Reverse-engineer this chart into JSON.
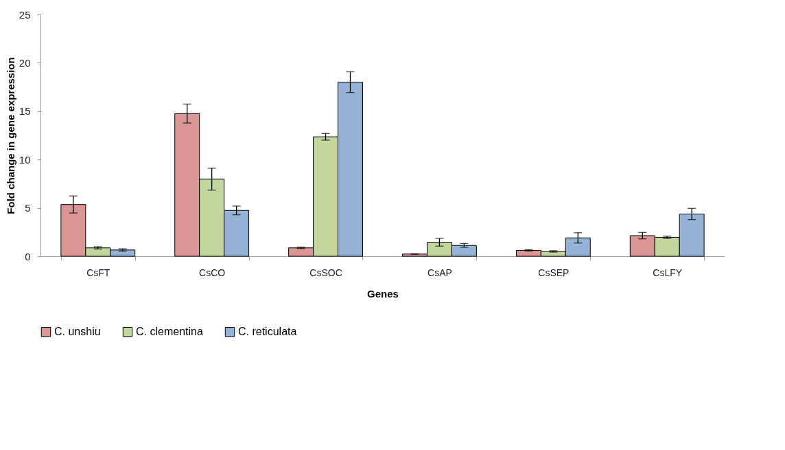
{
  "chart_data": {
    "type": "bar",
    "xlabel": "Genes",
    "ylabel": "Fold change in gene expression",
    "categories": [
      "CsFT",
      "CsCO",
      "CsSOC",
      "CsAP",
      "CsSEP",
      "CsLFY"
    ],
    "series": [
      {
        "name": "C. unshiu",
        "color": "#d99694",
        "values": [
          5.35,
          14.75,
          0.87,
          0.23,
          0.61,
          2.13
        ],
        "errors": [
          0.88,
          0.98,
          0.07,
          0.03,
          0.07,
          0.33
        ]
      },
      {
        "name": "C. clementina",
        "color": "#c3d69b",
        "values": [
          0.87,
          7.97,
          12.35,
          1.45,
          0.5,
          1.96
        ],
        "errors": [
          0.12,
          1.13,
          0.34,
          0.4,
          0.07,
          0.12
        ]
      },
      {
        "name": "C. reticulata",
        "color": "#95b3d7",
        "values": [
          0.65,
          4.74,
          18.0,
          1.12,
          1.9,
          4.37
        ],
        "errors": [
          0.12,
          0.45,
          1.07,
          0.2,
          0.53,
          0.58
        ]
      }
    ],
    "ylim": [
      0,
      25
    ],
    "yticks": [
      0,
      5,
      10,
      15,
      20,
      25
    ],
    "grid": false,
    "legend": "bottom"
  }
}
